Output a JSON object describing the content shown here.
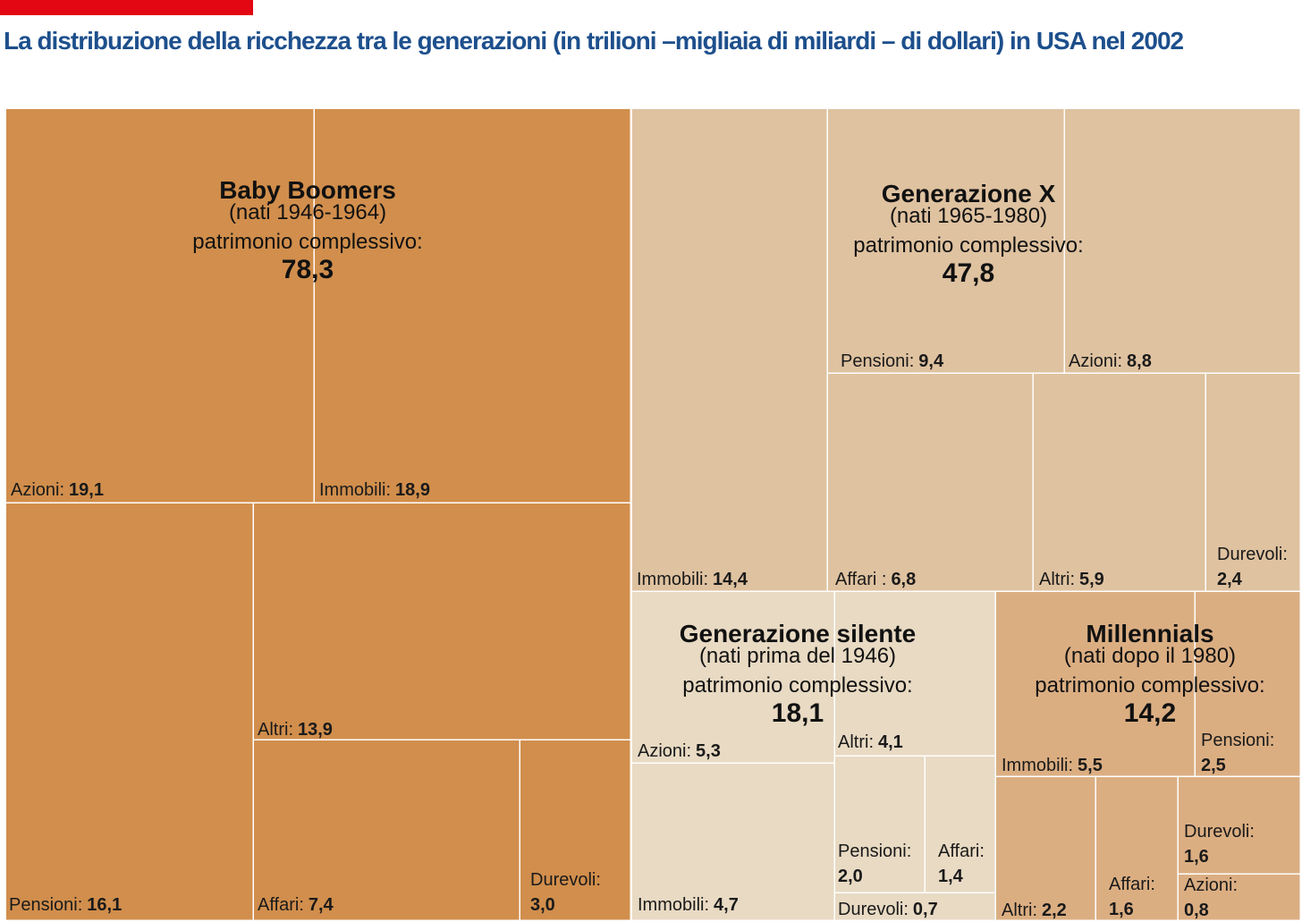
{
  "title": "La distribuzione della ricchezza tra le generazioni (in trilioni –migliaia di miliardi – di dollari) in USA nel 2002",
  "colors": {
    "title": "#1d4f8c",
    "accent_bar": "#e30613",
    "divider": "#ffffff",
    "baby_boomers": "#d18e4c",
    "generazione_x": "#dfc2a0",
    "generazione_silente": "#e8dac3",
    "millennials": "#dbae82"
  },
  "chart_data": {
    "type": "treemap",
    "unit": "trilioni di dollari",
    "groups": [
      {
        "id": "baby_boomers",
        "name": "Baby Boomers",
        "subtitle": "(nati 1946-1964)",
        "total_label": "patrimonio complessivo:",
        "total": "78,3",
        "items": [
          {
            "label": "Azioni:",
            "value": "19,1"
          },
          {
            "label": "Immobili:",
            "value": "18,9"
          },
          {
            "label": "Pensioni:",
            "value": "16,1"
          },
          {
            "label": "Altri:",
            "value": "13,9"
          },
          {
            "label": "Affari:",
            "value": "7,4"
          },
          {
            "label": "Durevoli:",
            "value": "3,0"
          }
        ]
      },
      {
        "id": "generazione_x",
        "name": "Generazione X",
        "subtitle": "(nati 1965-1980)",
        "total_label": "patrimonio complessivo:",
        "total": "47,8",
        "items": [
          {
            "label": "Immobili:",
            "value": "14,4"
          },
          {
            "label": "Pensioni:",
            "value": "9,4"
          },
          {
            "label": "Azioni:",
            "value": "8,8"
          },
          {
            "label": "Affari :",
            "value": "6,8"
          },
          {
            "label": "Altri:",
            "value": "5,9"
          },
          {
            "label": "Durevoli:",
            "value": "2,4"
          }
        ]
      },
      {
        "id": "generazione_silente",
        "name": "Generazione silente",
        "subtitle": "(nati prima del 1946)",
        "total_label": "patrimonio complessivo:",
        "total": "18,1",
        "items": [
          {
            "label": "Azioni:",
            "value": "5,3"
          },
          {
            "label": "Immobili:",
            "value": "4,7"
          },
          {
            "label": "Altri:",
            "value": "4,1"
          },
          {
            "label": "Pensioni:",
            "value": "2,0"
          },
          {
            "label": "Affari:",
            "value": "1,4"
          },
          {
            "label": "Durevoli:",
            "value": "0,7"
          }
        ]
      },
      {
        "id": "millennials",
        "name": "Millennials",
        "subtitle": "(nati dopo il 1980)",
        "total_label": "patrimonio complessivo:",
        "total": "14,2",
        "items": [
          {
            "label": "Immobili:",
            "value": "5,5"
          },
          {
            "label": "Pensioni:",
            "value": "2,5"
          },
          {
            "label": "Altri:",
            "value": "2,2"
          },
          {
            "label": "Affari:",
            "value": "1,6"
          },
          {
            "label": "Durevoli:",
            "value": "1,6"
          },
          {
            "label": "Azioni:",
            "value": "0,8"
          }
        ]
      }
    ]
  }
}
